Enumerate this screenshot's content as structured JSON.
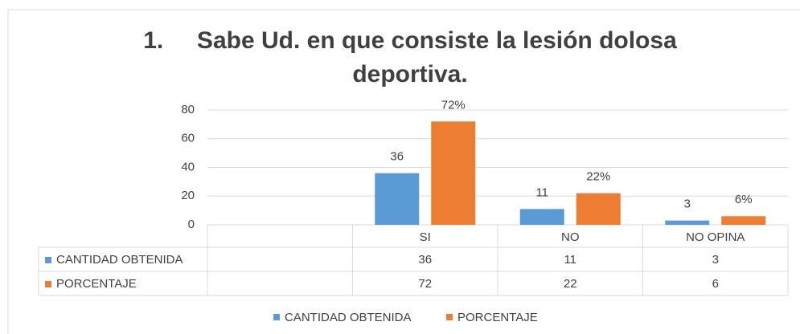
{
  "chart_data": {
    "type": "bar",
    "title": "1.     Sabe Ud. en que consiste la lesión dolosa deportiva.",
    "categories": [
      null,
      "SI",
      "NO",
      "NO OPINA"
    ],
    "series": [
      {
        "name": "CANTIDAD OBTENIDA",
        "color": "#5b9bd5",
        "values": [
          null,
          36,
          11,
          3
        ]
      },
      {
        "name": "PORCENTAJE",
        "color": "#ed7d31",
        "values": [
          null,
          72,
          22,
          6
        ],
        "value_labels": [
          null,
          "72%",
          "22%",
          "6%"
        ]
      }
    ],
    "ylim": [
      0,
      80
    ],
    "yticks": [
      0,
      20,
      40,
      60,
      80
    ],
    "grid": true,
    "data_table": true,
    "legend": "bottom"
  }
}
